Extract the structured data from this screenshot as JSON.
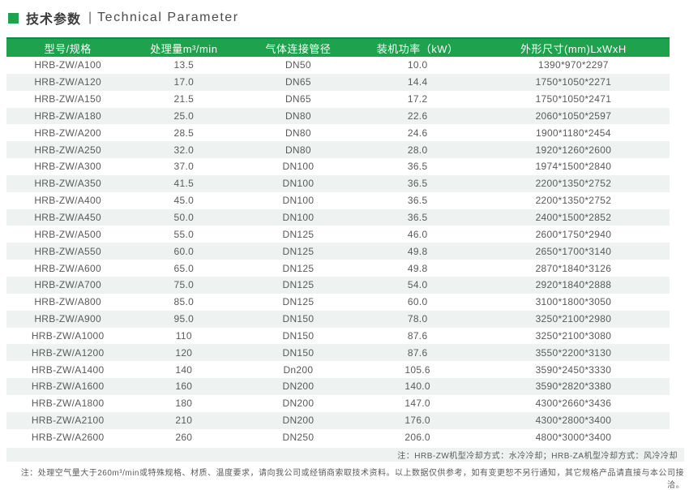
{
  "colors": {
    "accent_green": "#1FA24D",
    "accent_green_dark": "#0F8C3F",
    "alt_row_bg": "#EEF3F1"
  },
  "header": {
    "title_cn": "技术参数",
    "divider": "|",
    "title_en": "Technical Parameter"
  },
  "table": {
    "columns": [
      "型号/规格",
      "处理量m³/min",
      "气体连接管径",
      "装机功率（kW）",
      "外形尺寸(mm)LxWxH"
    ],
    "rows": [
      [
        "HRB-ZW/A100",
        "13.5",
        "DN50",
        "10.0",
        "1390*970*2297"
      ],
      [
        "HRB-ZW/A120",
        "17.0",
        "DN65",
        "14.4",
        "1750*1050*2271"
      ],
      [
        "HRB-ZW/A150",
        "21.5",
        "DN65",
        "17.2",
        "1750*1050*2471"
      ],
      [
        "HRB-ZW/A180",
        "25.0",
        "DN80",
        "22.6",
        "2060*1050*2597"
      ],
      [
        "HRB-ZW/A200",
        "28.5",
        "DN80",
        "24.6",
        "1900*1180*2454"
      ],
      [
        "HRB-ZW/A250",
        "32.0",
        "DN80",
        "28.0",
        "1920*1260*2600"
      ],
      [
        "HRB-ZW/A300",
        "37.0",
        "DN100",
        "36.5",
        "1974*1500*2840"
      ],
      [
        "HRB-ZW/A350",
        "41.5",
        "DN100",
        "36.5",
        "2200*1350*2752"
      ],
      [
        "HRB-ZW/A400",
        "45.0",
        "DN100",
        "36.5",
        "2200*1350*2752"
      ],
      [
        "HRB-ZW/A450",
        "50.0",
        "DN100",
        "36.5",
        "2400*1500*2852"
      ],
      [
        "HRB-ZW/A500",
        "55.0",
        "DN125",
        "46.0",
        "2600*1750*2940"
      ],
      [
        "HRB-ZW/A550",
        "60.0",
        "DN125",
        "49.8",
        "2650*1700*3140"
      ],
      [
        "HRB-ZW/A600",
        "65.0",
        "DN125",
        "49.8",
        "2870*1840*3126"
      ],
      [
        "HRB-ZW/A700",
        "75.0",
        "DN125",
        "54.0",
        "2920*1840*2888"
      ],
      [
        "HRB-ZW/A800",
        "85.0",
        "DN125",
        "60.0",
        "3100*1800*3050"
      ],
      [
        "HRB-ZW/A900",
        "95.0",
        "DN150",
        "78.0",
        "3250*2100*2980"
      ],
      [
        "HRB-ZW/A1000",
        "110",
        "DN150",
        "87.6",
        "3250*2100*3080"
      ],
      [
        "HRB-ZW/A1200",
        "120",
        "DN150",
        "87.6",
        "3550*2200*3130"
      ],
      [
        "HRB-ZW/A1400",
        "140",
        "Dn200",
        "105.6",
        "3590*2450*3330"
      ],
      [
        "HRB-ZW/A1600",
        "160",
        "DN200",
        "140.0",
        "3590*2820*3380"
      ],
      [
        "HRB-ZW/A1800",
        "180",
        "DN200",
        "147.0",
        "4300*2660*3436"
      ],
      [
        "HRB-ZW/A2100",
        "210",
        "DN200",
        "176.0",
        "4300*2800*3400"
      ],
      [
        "HRB-ZW/A2600",
        "260",
        "DN250",
        "206.0",
        "4800*3000*3400"
      ]
    ]
  },
  "notes": {
    "cooling": "注：HRB-ZW机型冷却方式：水冷冷却；HRB-ZA机型冷却方式：风冷冷却",
    "general": "注：处理空气量大于260m³/min或特殊规格、材质、温度要求，请向我公司或经销商索取技术资料。以上数据仅供参考，如有变更恕不另行通知，其它规格产品请直接与本公司接洽。"
  }
}
